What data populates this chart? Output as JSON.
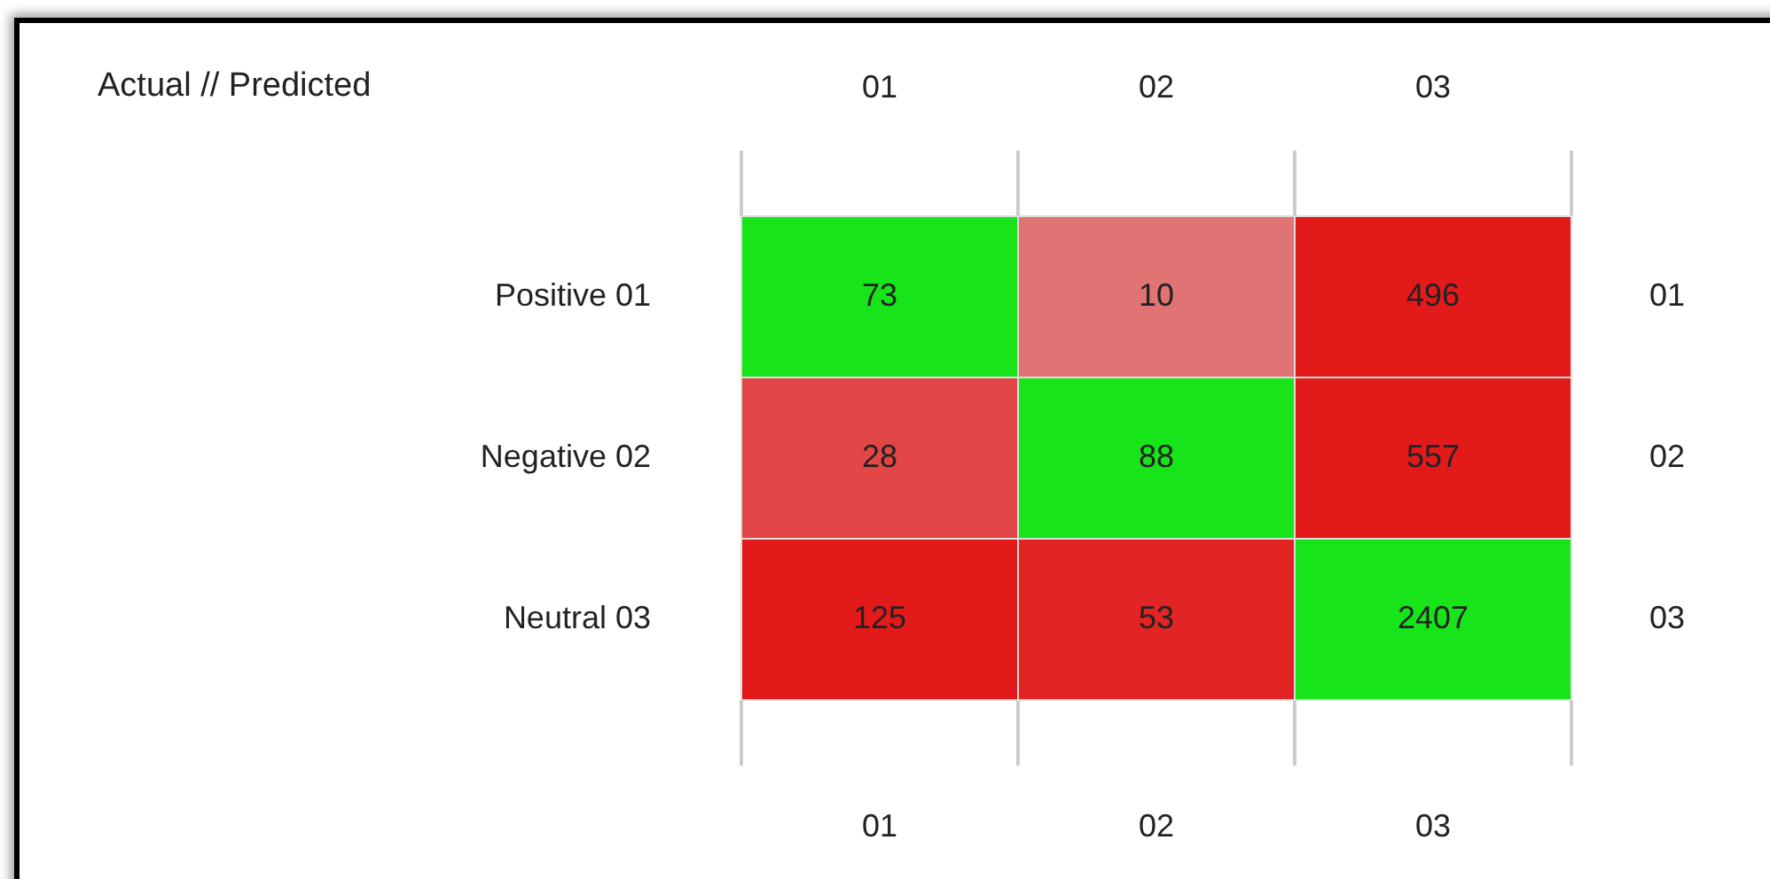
{
  "chart_data": {
    "type": "heatmap",
    "title": "Actual // Predicted",
    "categories": [
      "01",
      "02",
      "03"
    ],
    "y_categories": [
      "Positive 01",
      "Negative 02",
      "Neutral 03"
    ],
    "y2_categories": [
      "01",
      "02",
      "03"
    ],
    "cells": [
      [
        73,
        10,
        496
      ],
      [
        28,
        88,
        557
      ],
      [
        125,
        53,
        2407
      ]
    ],
    "colors": [
      [
        "#17e51a",
        "#e07474",
        "#e31a1a"
      ],
      [
        "#e24646",
        "#17e51a",
        "#e31a1a"
      ],
      [
        "#e31a1a",
        "#e32424",
        "#17e51a"
      ]
    ],
    "data_labels": true,
    "legend": false
  }
}
